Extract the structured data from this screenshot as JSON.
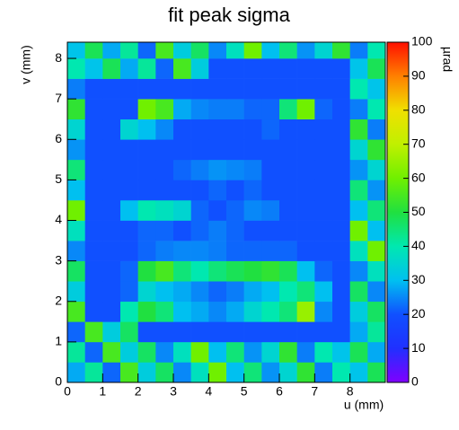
{
  "chart_data": {
    "type": "heatmap",
    "title": "fit peak sigma",
    "x_label": "u (mm)",
    "y_label": "v (mm)",
    "colorbar_label": "µrad",
    "x": [
      0,
      0.5,
      1,
      1.5,
      2,
      2.5,
      3,
      3.5,
      4,
      4.5,
      5,
      5.5,
      6,
      6.5,
      7,
      7.5,
      8,
      8.5,
      9
    ],
    "y": [
      0,
      0.5,
      1,
      1.5,
      2,
      2.5,
      3,
      3.5,
      4,
      4.5,
      5,
      5.5,
      6,
      6.5,
      7,
      7.5,
      8,
      8.4
    ],
    "z": [
      [
        28,
        42,
        22,
        55,
        33,
        47,
        25,
        38,
        60,
        30,
        45,
        26,
        35,
        52,
        24,
        40,
        31,
        48
      ],
      [
        42,
        22,
        55,
        33,
        47,
        25,
        38,
        60,
        30,
        45,
        26,
        35,
        52,
        24,
        40,
        31,
        48,
        28
      ],
      [
        22,
        55,
        33,
        47,
        20,
        20,
        20,
        20,
        20,
        20,
        20,
        20,
        20,
        20,
        20,
        20,
        28,
        42
      ],
      [
        55,
        20,
        20,
        40,
        50,
        45,
        30,
        28,
        25,
        28,
        35,
        40,
        45,
        65,
        25,
        20,
        33,
        47
      ],
      [
        33,
        20,
        20,
        22,
        35,
        30,
        28,
        25,
        22,
        24,
        28,
        30,
        40,
        45,
        30,
        20,
        47,
        25
      ],
      [
        47,
        20,
        20,
        22,
        50,
        55,
        45,
        40,
        45,
        48,
        50,
        52,
        48,
        30,
        22,
        20,
        25,
        38
      ],
      [
        25,
        20,
        20,
        20,
        22,
        24,
        25,
        25,
        24,
        22,
        22,
        22,
        22,
        20,
        20,
        20,
        38,
        60
      ],
      [
        38,
        20,
        20,
        20,
        22,
        22,
        20,
        22,
        24,
        22,
        20,
        20,
        20,
        20,
        20,
        20,
        60,
        30
      ],
      [
        60,
        20,
        20,
        30,
        40,
        38,
        35,
        22,
        20,
        22,
        25,
        24,
        20,
        20,
        20,
        20,
        30,
        45
      ],
      [
        30,
        20,
        20,
        20,
        20,
        20,
        20,
        20,
        22,
        20,
        22,
        20,
        20,
        20,
        20,
        20,
        45,
        26
      ],
      [
        45,
        20,
        20,
        20,
        20,
        20,
        22,
        24,
        26,
        25,
        24,
        20,
        20,
        20,
        20,
        20,
        26,
        35
      ],
      [
        26,
        20,
        20,
        20,
        20,
        20,
        20,
        20,
        20,
        20,
        20,
        20,
        20,
        20,
        20,
        20,
        35,
        52
      ],
      [
        35,
        20,
        20,
        35,
        30,
        25,
        20,
        20,
        20,
        20,
        20,
        22,
        20,
        20,
        20,
        20,
        52,
        24
      ],
      [
        52,
        20,
        20,
        20,
        60,
        55,
        28,
        25,
        24,
        24,
        22,
        22,
        45,
        60,
        22,
        20,
        24,
        40
      ],
      [
        24,
        20,
        20,
        20,
        20,
        20,
        20,
        20,
        20,
        20,
        20,
        20,
        20,
        20,
        20,
        20,
        40,
        31
      ],
      [
        40,
        31,
        48,
        28,
        42,
        22,
        55,
        33,
        20,
        20,
        20,
        20,
        20,
        20,
        20,
        20,
        31,
        48
      ],
      [
        31,
        48,
        28,
        42,
        22,
        55,
        33,
        47,
        25,
        38,
        60,
        30,
        45,
        26,
        35,
        52,
        24,
        40
      ]
    ],
    "xlim": [
      0,
      9
    ],
    "ylim": [
      0,
      8.4
    ],
    "zlim": [
      0,
      100
    ],
    "xticks": [
      0,
      1,
      2,
      3,
      4,
      5,
      6,
      7,
      8
    ],
    "yticks": [
      0,
      1,
      2,
      3,
      4,
      5,
      6,
      7,
      8
    ],
    "zticks": [
      0,
      10,
      20,
      30,
      40,
      50,
      60,
      70,
      80,
      90,
      100
    ],
    "colormap": [
      "#8000ff",
      "#2030ff",
      "#1050ff",
      "#00c0f0",
      "#00e8b0",
      "#20e040",
      "#70f000",
      "#c0f000",
      "#f0e000",
      "#ff8000",
      "#ff1000"
    ]
  }
}
